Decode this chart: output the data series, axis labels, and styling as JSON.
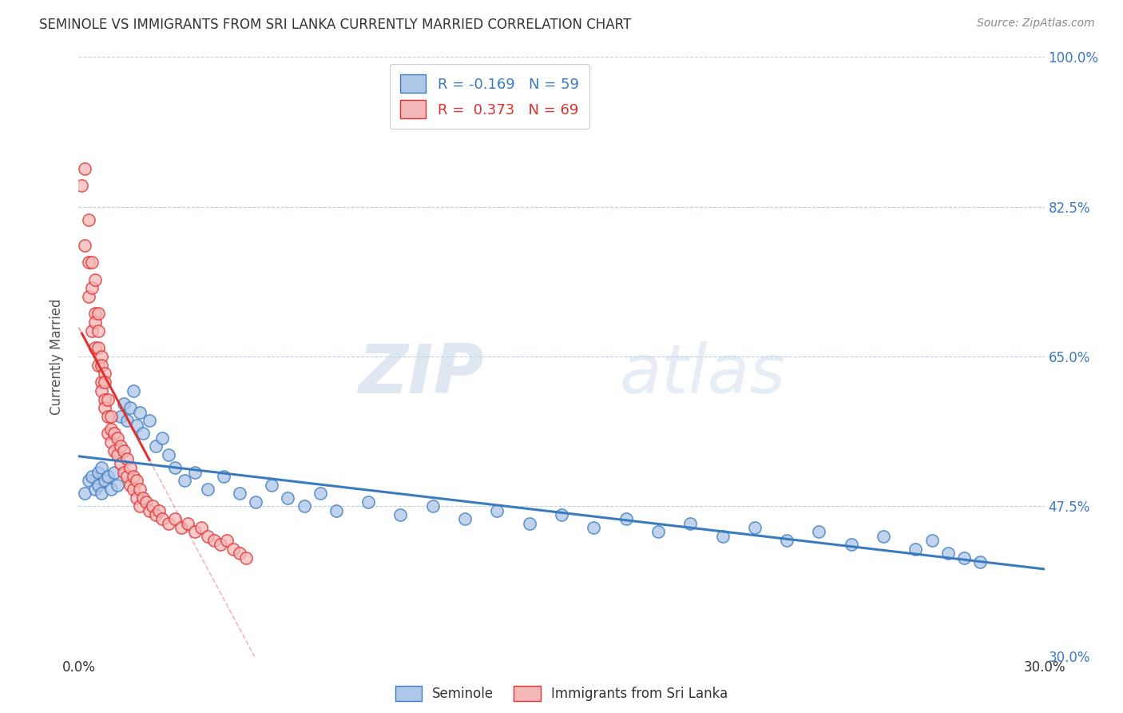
{
  "title": "SEMINOLE VS IMMIGRANTS FROM SRI LANKA CURRENTLY MARRIED CORRELATION CHART",
  "source_text": "Source: ZipAtlas.com",
  "ylabel": "Currently Married",
  "xlim": [
    0.0,
    0.3
  ],
  "ylim": [
    0.3,
    1.0
  ],
  "ytick_values": [
    0.3,
    0.475,
    0.65,
    0.825,
    1.0
  ],
  "R_seminole": -0.169,
  "N_seminole": 59,
  "R_srilanka": 0.373,
  "N_srilanka": 69,
  "seminole_color": "#aec6e8",
  "srilanka_color": "#f5b8b8",
  "seminole_line_color": "#3a7bbf",
  "srilanka_line_color": "#e03030",
  "legend_seminole": "Seminole",
  "legend_srilanka": "Immigrants from Sri Lanka",
  "watermark_zip": "ZIP",
  "watermark_atlas": "atlas",
  "title_color": "#333333",
  "tick_color_right": "#3a7bbf",
  "background_color": "#ffffff",
  "grid_color": "#c0cfe0",
  "seminole_x": [
    0.002,
    0.003,
    0.004,
    0.005,
    0.006,
    0.006,
    0.007,
    0.007,
    0.008,
    0.009,
    0.01,
    0.011,
    0.012,
    0.013,
    0.014,
    0.015,
    0.016,
    0.017,
    0.018,
    0.019,
    0.02,
    0.022,
    0.024,
    0.026,
    0.028,
    0.03,
    0.033,
    0.036,
    0.04,
    0.045,
    0.05,
    0.055,
    0.06,
    0.065,
    0.07,
    0.075,
    0.08,
    0.09,
    0.1,
    0.11,
    0.12,
    0.13,
    0.14,
    0.15,
    0.16,
    0.17,
    0.18,
    0.19,
    0.2,
    0.21,
    0.22,
    0.23,
    0.24,
    0.25,
    0.26,
    0.265,
    0.27,
    0.275,
    0.28
  ],
  "seminole_y": [
    0.49,
    0.505,
    0.51,
    0.495,
    0.515,
    0.5,
    0.52,
    0.49,
    0.505,
    0.51,
    0.495,
    0.515,
    0.5,
    0.58,
    0.595,
    0.575,
    0.59,
    0.61,
    0.57,
    0.585,
    0.56,
    0.575,
    0.545,
    0.555,
    0.535,
    0.52,
    0.505,
    0.515,
    0.495,
    0.51,
    0.49,
    0.48,
    0.5,
    0.485,
    0.475,
    0.49,
    0.47,
    0.48,
    0.465,
    0.475,
    0.46,
    0.47,
    0.455,
    0.465,
    0.45,
    0.46,
    0.445,
    0.455,
    0.44,
    0.45,
    0.435,
    0.445,
    0.43,
    0.44,
    0.425,
    0.435,
    0.42,
    0.415,
    0.41
  ],
  "srilanka_x": [
    0.001,
    0.002,
    0.002,
    0.003,
    0.003,
    0.003,
    0.004,
    0.004,
    0.004,
    0.005,
    0.005,
    0.005,
    0.005,
    0.006,
    0.006,
    0.006,
    0.006,
    0.007,
    0.007,
    0.007,
    0.007,
    0.008,
    0.008,
    0.008,
    0.008,
    0.009,
    0.009,
    0.009,
    0.01,
    0.01,
    0.01,
    0.011,
    0.011,
    0.012,
    0.012,
    0.013,
    0.013,
    0.014,
    0.014,
    0.015,
    0.015,
    0.016,
    0.016,
    0.017,
    0.017,
    0.018,
    0.018,
    0.019,
    0.019,
    0.02,
    0.021,
    0.022,
    0.023,
    0.024,
    0.025,
    0.026,
    0.028,
    0.03,
    0.032,
    0.034,
    0.036,
    0.038,
    0.04,
    0.042,
    0.044,
    0.046,
    0.048,
    0.05,
    0.052
  ],
  "srilanka_y": [
    0.85,
    0.78,
    0.87,
    0.72,
    0.76,
    0.81,
    0.68,
    0.73,
    0.76,
    0.7,
    0.74,
    0.66,
    0.69,
    0.68,
    0.64,
    0.66,
    0.7,
    0.65,
    0.62,
    0.64,
    0.61,
    0.63,
    0.6,
    0.62,
    0.59,
    0.6,
    0.58,
    0.56,
    0.58,
    0.55,
    0.565,
    0.56,
    0.54,
    0.555,
    0.535,
    0.545,
    0.525,
    0.54,
    0.515,
    0.53,
    0.51,
    0.52,
    0.5,
    0.51,
    0.495,
    0.505,
    0.485,
    0.495,
    0.475,
    0.485,
    0.48,
    0.47,
    0.475,
    0.465,
    0.47,
    0.46,
    0.455,
    0.46,
    0.45,
    0.455,
    0.445,
    0.45,
    0.44,
    0.435,
    0.43,
    0.435,
    0.425,
    0.42,
    0.415
  ],
  "srilanka_trend_x_start": 0.0,
  "srilanka_trend_x_solid_start": 0.001,
  "srilanka_trend_x_solid_end": 0.022,
  "srilanka_trend_x_end": 0.3
}
